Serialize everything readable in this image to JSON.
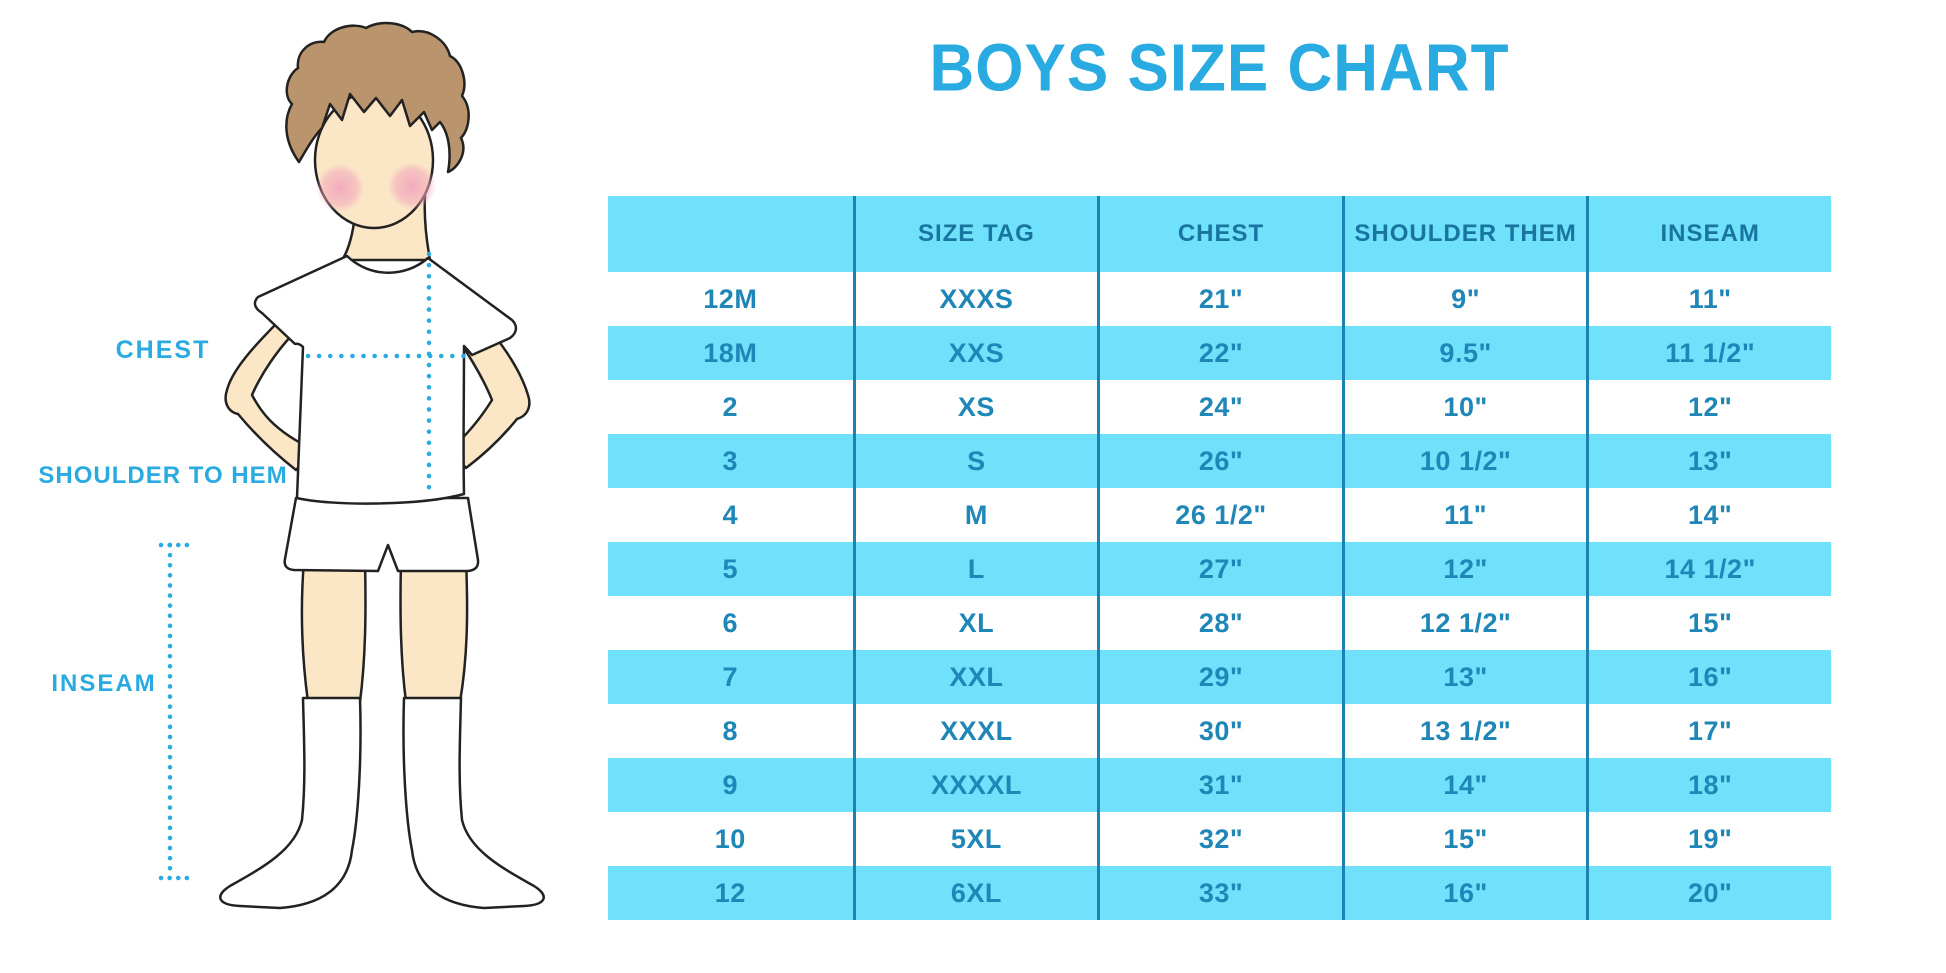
{
  "title": "BOYS SIZE CHART",
  "measurement_labels": {
    "chest": "CHEST",
    "shoulder_to_hem": "SHOULDER TO HEM",
    "inseam": "INSEAM"
  },
  "figure": {
    "description": "boy-with-measurement-lines",
    "lines": [
      "chest-measure-line",
      "shoulder-to-hem-measure-line",
      "inseam-measure-line"
    ]
  },
  "chart_data": {
    "type": "table",
    "title": "BOYS SIZE CHART",
    "columns": [
      "",
      "SIZE TAG",
      "CHEST",
      "SHOULDER THEM",
      "INSEAM"
    ],
    "rows": [
      [
        "12M",
        "XXXS",
        "21\"",
        "9\"",
        "11\""
      ],
      [
        "18M",
        "XXS",
        "22\"",
        "9.5\"",
        "11 1/2\""
      ],
      [
        "2",
        "XS",
        "24\"",
        "10\"",
        "12\""
      ],
      [
        "3",
        "S",
        "26\"",
        "10 1/2\"",
        "13\""
      ],
      [
        "4",
        "M",
        "26 1/2\"",
        "11\"",
        "14\""
      ],
      [
        "5",
        "L",
        "27\"",
        "12\"",
        "14 1/2\""
      ],
      [
        "6",
        "XL",
        "28\"",
        "12 1/2\"",
        "15\""
      ],
      [
        "7",
        "XXL",
        "29\"",
        "13\"",
        "16\""
      ],
      [
        "8",
        "XXXL",
        "30\"",
        "13 1/2\"",
        "17\""
      ],
      [
        "9",
        "XXXXL",
        "31\"",
        "14\"",
        "18\""
      ],
      [
        "10",
        "5XL",
        "32\"",
        "15\"",
        "19\""
      ],
      [
        "12",
        "6XL",
        "33\"",
        "16\"",
        "20\""
      ]
    ],
    "row_striping": "header and even rows light blue, others white",
    "legend_position": "none",
    "grid": "vertical column separators only"
  },
  "colors": {
    "accent_blue": "#29ABE2",
    "table_fill_blue": "#70E1FA",
    "table_line_blue": "#1B82B1",
    "table_text_blue": "#1F86B8",
    "header_text_blue": "#18759F",
    "skin": "#FBE7C6",
    "hair": "#B9946C",
    "cheek": "#F2A8BC",
    "outline": "#222222"
  }
}
